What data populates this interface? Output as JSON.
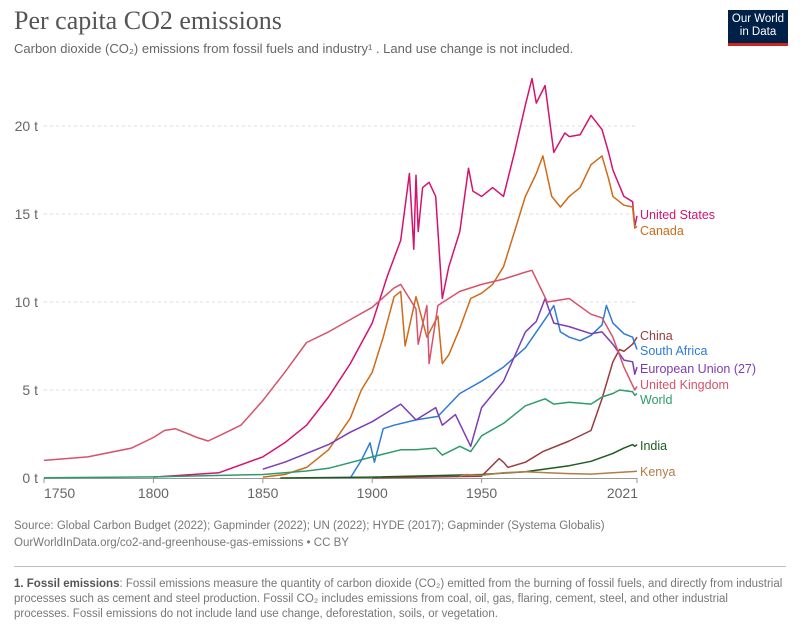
{
  "header": {
    "title": "Per capita CO2 emissions",
    "subtitle": "Carbon dioxide (CO₂) emissions from fossil fuels and industry¹ . Land use change is not included.",
    "logo_text": "Our World in Data"
  },
  "chart_data": {
    "type": "line",
    "title": "Per capita CO2 emissions",
    "xlim": [
      1750,
      2021
    ],
    "ylim": [
      0,
      23
    ],
    "x_ticks": [
      "1750",
      "1800",
      "1850",
      "1900",
      "1950",
      "2021"
    ],
    "y_ticks": [
      {
        "v": 0,
        "label": "0 t"
      },
      {
        "v": 5,
        "label": "5 t"
      },
      {
        "v": 10,
        "label": "10 t"
      },
      {
        "v": 15,
        "label": "15 t"
      },
      {
        "v": 20,
        "label": "20 t"
      }
    ],
    "grid": "horizontal-dashed",
    "legend": "right-end-labels",
    "series": [
      {
        "name": "United States",
        "color": "#d4136f",
        "points": [
          [
            1800,
            0.05
          ],
          [
            1830,
            0.3
          ],
          [
            1850,
            1.2
          ],
          [
            1860,
            2.0
          ],
          [
            1870,
            3.0
          ],
          [
            1880,
            4.6
          ],
          [
            1890,
            6.5
          ],
          [
            1900,
            8.8
          ],
          [
            1907,
            11.5
          ],
          [
            1910,
            12.5
          ],
          [
            1913,
            13.5
          ],
          [
            1917,
            17.3
          ],
          [
            1919,
            13.0
          ],
          [
            1920,
            17.2
          ],
          [
            1921,
            14.0
          ],
          [
            1923,
            16.5
          ],
          [
            1926,
            16.8
          ],
          [
            1929,
            16.0
          ],
          [
            1932,
            10.2
          ],
          [
            1935,
            12.0
          ],
          [
            1940,
            14.0
          ],
          [
            1944,
            17.6
          ],
          [
            1946,
            16.3
          ],
          [
            1950,
            16.0
          ],
          [
            1955,
            16.5
          ],
          [
            1960,
            16.0
          ],
          [
            1965,
            18.5
          ],
          [
            1970,
            21.2
          ],
          [
            1973,
            22.7
          ],
          [
            1975,
            21.3
          ],
          [
            1979,
            22.3
          ],
          [
            1983,
            18.5
          ],
          [
            1988,
            19.6
          ],
          [
            1990,
            19.4
          ],
          [
            1995,
            19.5
          ],
          [
            2000,
            20.6
          ],
          [
            2005,
            19.8
          ],
          [
            2008,
            18.5
          ],
          [
            2010,
            17.5
          ],
          [
            2015,
            16.0
          ],
          [
            2019,
            15.7
          ],
          [
            2020,
            14.3
          ],
          [
            2021,
            14.9
          ]
        ]
      },
      {
        "name": "Canada",
        "color": "#cf6a19",
        "points": [
          [
            1850,
            0.05
          ],
          [
            1860,
            0.2
          ],
          [
            1870,
            0.6
          ],
          [
            1880,
            1.6
          ],
          [
            1890,
            3.4
          ],
          [
            1895,
            5.0
          ],
          [
            1900,
            6.0
          ],
          [
            1905,
            8.0
          ],
          [
            1910,
            10.3
          ],
          [
            1913,
            10.6
          ],
          [
            1915,
            7.5
          ],
          [
            1920,
            10.3
          ],
          [
            1925,
            8.0
          ],
          [
            1930,
            9.2
          ],
          [
            1932,
            6.5
          ],
          [
            1935,
            7.0
          ],
          [
            1940,
            8.5
          ],
          [
            1945,
            10.2
          ],
          [
            1950,
            10.5
          ],
          [
            1955,
            11.0
          ],
          [
            1960,
            12.0
          ],
          [
            1965,
            14.0
          ],
          [
            1970,
            16.0
          ],
          [
            1975,
            17.3
          ],
          [
            1978,
            18.3
          ],
          [
            1982,
            16.0
          ],
          [
            1986,
            15.4
          ],
          [
            1990,
            16.0
          ],
          [
            1995,
            16.5
          ],
          [
            2000,
            17.8
          ],
          [
            2005,
            18.3
          ],
          [
            2008,
            17.0
          ],
          [
            2010,
            16.0
          ],
          [
            2015,
            15.5
          ],
          [
            2019,
            15.4
          ],
          [
            2020,
            14.2
          ],
          [
            2021,
            14.3
          ]
        ]
      },
      {
        "name": "China",
        "color": "#9a3b3f",
        "points": [
          [
            1900,
            0.01
          ],
          [
            1950,
            0.1
          ],
          [
            1958,
            1.1
          ],
          [
            1960,
            0.9
          ],
          [
            1962,
            0.6
          ],
          [
            1970,
            0.9
          ],
          [
            1978,
            1.5
          ],
          [
            1990,
            2.1
          ],
          [
            2000,
            2.7
          ],
          [
            2005,
            4.5
          ],
          [
            2010,
            6.6
          ],
          [
            2013,
            7.3
          ],
          [
            2015,
            7.2
          ],
          [
            2019,
            7.6
          ],
          [
            2021,
            8.0
          ]
        ]
      },
      {
        "name": "South Africa",
        "color": "#2d7bd6",
        "points": [
          [
            1890,
            0
          ],
          [
            1895,
            1.0
          ],
          [
            1899,
            2.0
          ],
          [
            1901,
            0.9
          ],
          [
            1905,
            2.8
          ],
          [
            1910,
            3.0
          ],
          [
            1920,
            3.3
          ],
          [
            1930,
            3.5
          ],
          [
            1940,
            4.8
          ],
          [
            1950,
            5.5
          ],
          [
            1960,
            6.3
          ],
          [
            1970,
            7.4
          ],
          [
            1980,
            9.2
          ],
          [
            1983,
            9.8
          ],
          [
            1986,
            8.3
          ],
          [
            1990,
            8.0
          ],
          [
            1995,
            7.8
          ],
          [
            2000,
            8.1
          ],
          [
            2005,
            8.7
          ],
          [
            2007,
            9.8
          ],
          [
            2010,
            8.8
          ],
          [
            2015,
            8.2
          ],
          [
            2019,
            8.0
          ],
          [
            2021,
            7.3
          ]
        ]
      },
      {
        "name": "European Union (27)",
        "color": "#7d3cb4",
        "points": [
          [
            1850,
            0.5
          ],
          [
            1860,
            0.9
          ],
          [
            1870,
            1.4
          ],
          [
            1880,
            1.9
          ],
          [
            1890,
            2.6
          ],
          [
            1900,
            3.2
          ],
          [
            1913,
            4.2
          ],
          [
            1920,
            3.3
          ],
          [
            1929,
            4.0
          ],
          [
            1932,
            3.0
          ],
          [
            1938,
            3.6
          ],
          [
            1945,
            1.8
          ],
          [
            1950,
            4.0
          ],
          [
            1960,
            5.5
          ],
          [
            1970,
            8.3
          ],
          [
            1975,
            8.9
          ],
          [
            1979,
            10.2
          ],
          [
            1983,
            8.8
          ],
          [
            1990,
            8.6
          ],
          [
            2000,
            8.2
          ],
          [
            2005,
            8.3
          ],
          [
            2010,
            7.6
          ],
          [
            2015,
            6.7
          ],
          [
            2019,
            6.6
          ],
          [
            2020,
            5.9
          ],
          [
            2021,
            6.3
          ]
        ]
      },
      {
        "name": "United Kingdom",
        "color": "#d6536b",
        "points": [
          [
            1750,
            1.0
          ],
          [
            1770,
            1.2
          ],
          [
            1790,
            1.7
          ],
          [
            1800,
            2.3
          ],
          [
            1805,
            2.7
          ],
          [
            1810,
            2.8
          ],
          [
            1820,
            2.3
          ],
          [
            1825,
            2.1
          ],
          [
            1830,
            2.4
          ],
          [
            1840,
            3.0
          ],
          [
            1850,
            4.4
          ],
          [
            1860,
            6.0
          ],
          [
            1870,
            7.7
          ],
          [
            1880,
            8.3
          ],
          [
            1890,
            9.0
          ],
          [
            1900,
            9.7
          ],
          [
            1910,
            10.8
          ],
          [
            1913,
            11.0
          ],
          [
            1920,
            9.6
          ],
          [
            1921,
            7.6
          ],
          [
            1925,
            9.8
          ],
          [
            1926,
            6.5
          ],
          [
            1930,
            9.8
          ],
          [
            1940,
            10.6
          ],
          [
            1950,
            11.0
          ],
          [
            1960,
            11.3
          ],
          [
            1970,
            11.7
          ],
          [
            1973,
            11.8
          ],
          [
            1980,
            10.0
          ],
          [
            1990,
            10.2
          ],
          [
            2000,
            9.3
          ],
          [
            2005,
            9.1
          ],
          [
            2010,
            8.0
          ],
          [
            2015,
            6.3
          ],
          [
            2020,
            5.0
          ],
          [
            2021,
            5.2
          ]
        ]
      },
      {
        "name": "World",
        "color": "#2e9c6a",
        "points": [
          [
            1750,
            0.01
          ],
          [
            1800,
            0.06
          ],
          [
            1850,
            0.2
          ],
          [
            1870,
            0.4
          ],
          [
            1880,
            0.55
          ],
          [
            1900,
            1.2
          ],
          [
            1913,
            1.6
          ],
          [
            1920,
            1.6
          ],
          [
            1929,
            1.7
          ],
          [
            1932,
            1.3
          ],
          [
            1940,
            1.8
          ],
          [
            1945,
            1.5
          ],
          [
            1950,
            2.4
          ],
          [
            1960,
            3.1
          ],
          [
            1970,
            4.1
          ],
          [
            1979,
            4.5
          ],
          [
            1983,
            4.2
          ],
          [
            1990,
            4.3
          ],
          [
            2000,
            4.2
          ],
          [
            2005,
            4.6
          ],
          [
            2010,
            4.8
          ],
          [
            2013,
            5.0
          ],
          [
            2019,
            4.9
          ],
          [
            2020,
            4.7
          ],
          [
            2021,
            4.8
          ]
        ]
      },
      {
        "name": "India",
        "color": "#1e5b1e",
        "points": [
          [
            1858,
            0.0
          ],
          [
            1900,
            0.05
          ],
          [
            1950,
            0.2
          ],
          [
            1970,
            0.35
          ],
          [
            1990,
            0.7
          ],
          [
            2000,
            0.95
          ],
          [
            2010,
            1.4
          ],
          [
            2015,
            1.7
          ],
          [
            2019,
            1.9
          ],
          [
            2020,
            1.8
          ],
          [
            2021,
            1.9
          ]
        ]
      },
      {
        "name": "Kenya",
        "color": "#b37b4a",
        "points": [
          [
            1940,
            0.1
          ],
          [
            1943,
            0.2
          ],
          [
            1950,
            0.15
          ],
          [
            1960,
            0.3
          ],
          [
            1970,
            0.35
          ],
          [
            1980,
            0.3
          ],
          [
            1990,
            0.25
          ],
          [
            2000,
            0.22
          ],
          [
            2010,
            0.3
          ],
          [
            2021,
            0.38
          ]
        ]
      }
    ]
  },
  "footer": {
    "source": "Source: Global Carbon Budget (2022); Gapminder (2022); UN (2022); HYDE (2017); Gapminder (Systema Globalis)",
    "url": "OurWorldInData.org/co2-and-greenhouse-gas-emissions • CC BY",
    "note_heading": "1. Fossil emissions",
    "note_text": ": Fossil emissions measure the quantity of carbon dioxide (CO₂) emitted from the burning of fossil fuels, and directly from industrial processes such as cement and steel production. Fossil CO₂ includes emissions from coal, oil, gas, flaring, cement, steel, and other industrial processes. Fossil emissions do not include land use change, deforestation, soils, or vegetation."
  }
}
